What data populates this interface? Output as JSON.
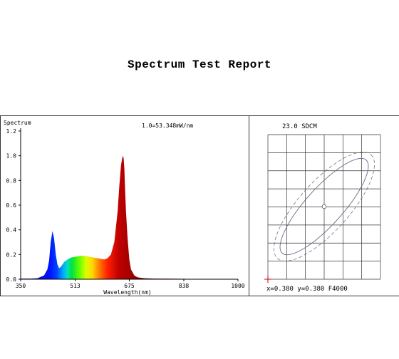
{
  "report_title": "Spectrum Test Report",
  "chart_data": [
    {
      "type": "area",
      "title": "1.0=53.348mW/nm",
      "ylabel": "Spectrum",
      "xlabel": "Wavelength(nm)",
      "xlim": [
        350,
        1000
      ],
      "ylim": [
        0,
        1.2
      ],
      "xticks": [
        "350",
        "513",
        "675",
        "838",
        "1000"
      ],
      "yticks": [
        "0.0",
        "0.2",
        "0.4",
        "0.6",
        "0.8",
        "1.0",
        "1.2"
      ],
      "grid": false,
      "fill": "spectral-color-gradient",
      "x": [
        350,
        380,
        400,
        420,
        430,
        435,
        440,
        445,
        450,
        455,
        460,
        465,
        470,
        475,
        480,
        490,
        500,
        510,
        520,
        530,
        540,
        550,
        560,
        570,
        580,
        590,
        600,
        610,
        620,
        630,
        640,
        645,
        650,
        655,
        658,
        660,
        662,
        665,
        670,
        675,
        680,
        690,
        700,
        720,
        750,
        800,
        850,
        900,
        950,
        1000
      ],
      "values": [
        0.005,
        0.005,
        0.008,
        0.03,
        0.08,
        0.15,
        0.3,
        0.39,
        0.33,
        0.2,
        0.12,
        0.09,
        0.1,
        0.12,
        0.14,
        0.16,
        0.175,
        0.18,
        0.185,
        0.19,
        0.19,
        0.185,
        0.18,
        0.175,
        0.17,
        0.165,
        0.16,
        0.17,
        0.2,
        0.3,
        0.55,
        0.75,
        0.92,
        1.0,
        0.98,
        0.9,
        0.75,
        0.55,
        0.32,
        0.16,
        0.08,
        0.03,
        0.015,
        0.008,
        0.005,
        0.004,
        0.003,
        0.003,
        0.002,
        0.002
      ]
    },
    {
      "type": "scatter",
      "title": "23.0 SDCM",
      "point": {
        "x": 0.38,
        "y": 0.38
      },
      "readout": "x=0.380 y=0.380 F4000",
      "grid": true
    }
  ],
  "colors": {
    "axis": "#000000",
    "ellipse_inner": "#6a6a8a",
    "ellipse_outer": "#777777",
    "grid": "#333333",
    "origin_marker": "#cc0000"
  }
}
